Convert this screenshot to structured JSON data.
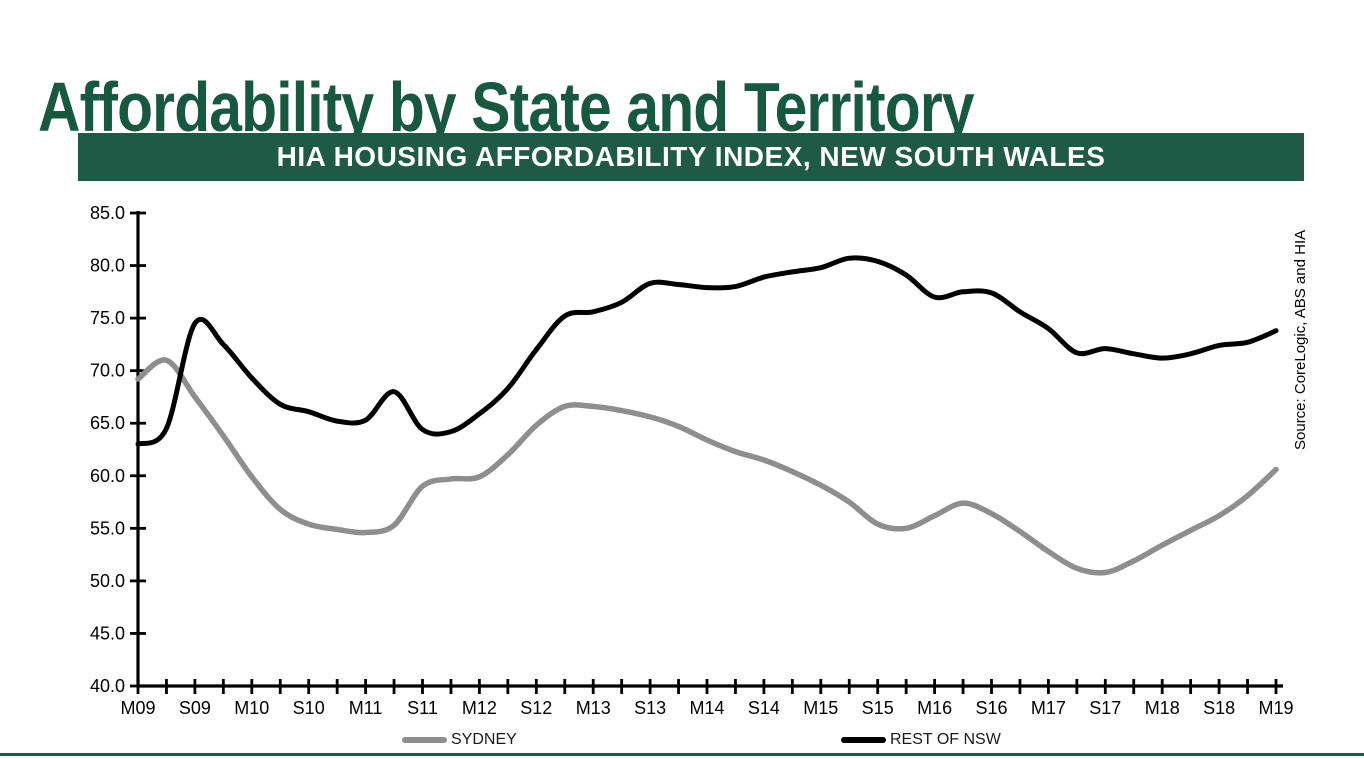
{
  "page": {
    "title": "Affordability by State and Territory",
    "banner": "HIA HOUSING AFFORDABILITY INDEX, NEW SOUTH WALES",
    "source_note": "Source: CoreLogic, ABS and HIA"
  },
  "colors": {
    "title_green": "#16593F",
    "banner_green": "#1E5A46",
    "rule_green": "#1E5A46",
    "sydney_gray": "#8E8E8E",
    "rest_of_nsw_black": "#000000"
  },
  "legend": [
    {
      "label": "SYDNEY",
      "color": "#8E8E8E"
    },
    {
      "label": "REST OF NSW",
      "color": "#000000"
    }
  ],
  "chart_data": {
    "type": "line",
    "title": "HIA HOUSING AFFORDABILITY INDEX, NEW SOUTH WALES",
    "xlabel": "",
    "ylabel": "",
    "ylim": [
      40,
      85
    ],
    "y_tick_step": 5,
    "y_tick_labels": [
      "85.0",
      "80.0",
      "75.0",
      "70.0",
      "65.0",
      "60.0",
      "55.0",
      "50.0",
      "45.0",
      "40.0"
    ],
    "x_tick_labels": [
      "M09",
      "S09",
      "M10",
      "S10",
      "M11",
      "S11",
      "M12",
      "S12",
      "M13",
      "S13",
      "M14",
      "S14",
      "M15",
      "S15",
      "M16",
      "S16",
      "M17",
      "S17",
      "M18",
      "S18",
      "M19"
    ],
    "x_note": "quarterly points from March 2009 to March 2019; labeled ticks every second quarter (M = March, S = September)",
    "grid": false,
    "legend_position": "bottom",
    "series": [
      {
        "name": "SYDNEY",
        "color": "#8E8E8E",
        "values": [
          69.2,
          71.0,
          67.5,
          63.8,
          59.9,
          56.8,
          55.4,
          54.9,
          54.6,
          55.3,
          59.0,
          59.7,
          59.9,
          62.0,
          64.8,
          66.6,
          66.6,
          66.2,
          65.6,
          64.7,
          63.4,
          62.3,
          61.5,
          60.4,
          59.1,
          57.5,
          55.4,
          55.0,
          56.2,
          57.4,
          56.4,
          54.7,
          52.8,
          51.2,
          50.8,
          51.9,
          53.4,
          54.8,
          56.2,
          58.1,
          60.6
        ]
      },
      {
        "name": "REST OF NSW",
        "color": "#000000",
        "values": [
          63.0,
          64.5,
          74.5,
          72.5,
          69.3,
          66.8,
          66.1,
          65.2,
          65.3,
          68.0,
          64.4,
          64.2,
          65.9,
          68.3,
          72.0,
          75.2,
          75.6,
          76.5,
          78.3,
          78.2,
          77.9,
          78.0,
          78.9,
          79.4,
          79.8,
          80.7,
          80.4,
          79.1,
          77.0,
          77.5,
          77.4,
          75.6,
          74.0,
          71.7,
          72.1,
          71.6,
          71.2,
          71.6,
          72.4,
          72.7,
          73.8
        ]
      }
    ]
  }
}
